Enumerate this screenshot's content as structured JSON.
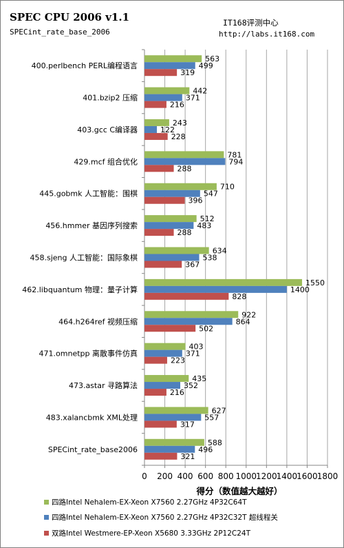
{
  "header": {
    "title": "SPEC CPU 2006 v1.1",
    "subtitle": "SPECint_rate_base_2006",
    "source_name": "IT168评测中心",
    "source_url": "http://labs.it168.com"
  },
  "colors": {
    "series": [
      "#9bbb59",
      "#4f81bd",
      "#c0504d"
    ],
    "grid": "#a6a6a6",
    "axis": "#868686"
  },
  "chart_data": {
    "type": "bar",
    "orientation": "horizontal",
    "categories": [
      "400.perlbench PERL编程语言",
      "401.bzip2 压缩",
      "403.gcc C编译器",
      "429.mcf 组合优化",
      "445.gobmk 人工智能：围棋",
      "456.hmmer 基因序列搜索",
      "458.sjeng 人工智能：国际象棋",
      "462.libquantum 物理：量子计算",
      "464.h264ref 视频压缩",
      "471.omnetpp 离散事件仿真",
      "473.astar 寻路算法",
      "483.xalancbmk XML处理",
      "SPECint_rate_base2006"
    ],
    "series": [
      {
        "name": "四路Intel Nehalem-EX-Xeon X7560 2.27GHz 4P32C64T",
        "values": [
          563,
          442,
          243,
          781,
          710,
          512,
          634,
          1550,
          922,
          403,
          435,
          627,
          588
        ]
      },
      {
        "name": "四路Intel Nehalem-EX-Xeon X7560 2.27GHz 4P32C32T 超线程关",
        "values": [
          499,
          371,
          122,
          794,
          547,
          483,
          538,
          1400,
          864,
          371,
          352,
          557,
          496
        ]
      },
      {
        "name": "双路Intel Westmere-EP-Xeon X5680 3.33GHz 2P12C24T",
        "values": [
          319,
          216,
          228,
          288,
          396,
          288,
          367,
          828,
          502,
          223,
          216,
          317,
          321
        ]
      }
    ],
    "xlabel": "得分（数值越大越好）",
    "xlim": [
      0,
      1800
    ],
    "xticks": [
      0,
      200,
      400,
      600,
      800,
      1000,
      1200,
      1400,
      1600,
      1800
    ],
    "grid": true,
    "legend_position": "bottom"
  }
}
